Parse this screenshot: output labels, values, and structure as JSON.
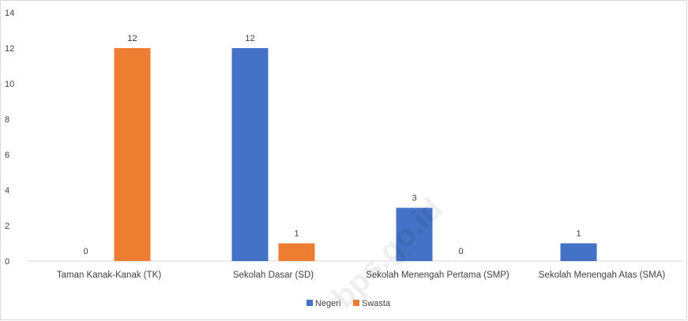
{
  "chart_data": {
    "type": "bar",
    "categories": [
      "Taman Kanak-Kanak (TK)",
      "Sekolah Dasar (SD)",
      "Sekolah Menengah Pertama (SMP)",
      "Sekolah Menengah Atas (SMA)"
    ],
    "series": [
      {
        "name": "Negeri",
        "color": "#4472C4",
        "values": [
          0,
          12,
          3,
          1
        ]
      },
      {
        "name": "Swasta",
        "color": "#ED7D31",
        "values": [
          12,
          1,
          0,
          null
        ]
      }
    ],
    "yticks": [
      0,
      2,
      4,
      6,
      8,
      10,
      12,
      14
    ],
    "ylim": [
      0,
      14
    ],
    "grid": false,
    "legend_position": "bottom",
    "watermark": "bps.go.id"
  }
}
